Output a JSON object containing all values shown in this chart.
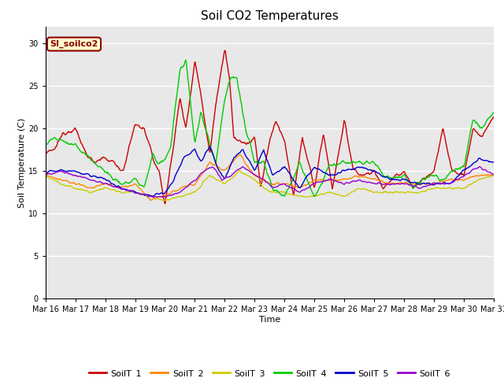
{
  "title": "Soil CO2 Temperatures",
  "xlabel": "Time",
  "ylabel": "Soil Temperature (C)",
  "ylim": [
    0,
    32
  ],
  "yticks": [
    0,
    5,
    10,
    15,
    20,
    25,
    30
  ],
  "annotation_text": "SI_soilco2",
  "series_names": [
    "SoilT_1",
    "SoilT_2",
    "SoilT_3",
    "SoilT_4",
    "SoilT_5",
    "SoilT_6"
  ],
  "series_colors": [
    "#cc0000",
    "#ff8800",
    "#cccc00",
    "#00cc00",
    "#0000cc",
    "#9900cc"
  ],
  "bg_color": "#ffffff",
  "plot_bg_color": "#e8e8e8",
  "grid_color": "#ffffff",
  "n_days": 15,
  "start_day": 16,
  "points_per_day": 48,
  "title_fontsize": 11,
  "axis_fontsize": 8,
  "tick_fontsize": 7
}
